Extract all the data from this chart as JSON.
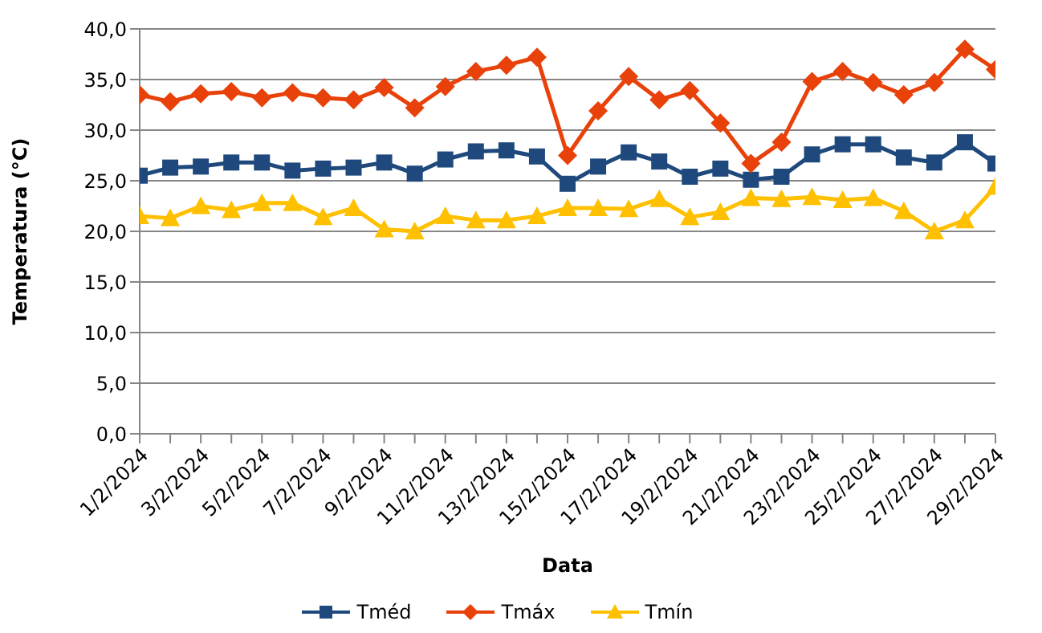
{
  "chart_data": {
    "type": "line",
    "xlabel": "Data",
    "ylabel": "Temperatura (°C)",
    "categories": [
      "1/2/2024",
      null,
      "3/2/2024",
      null,
      "5/2/2024",
      null,
      "7/2/2024",
      null,
      "9/2/2024",
      null,
      "11/2/2024",
      null,
      "13/2/2024",
      null,
      "15/2/2024",
      null,
      "17/2/2024",
      null,
      "19/2/2024",
      null,
      "21/2/2024",
      null,
      "23/2/2024",
      null,
      "25/2/2024",
      null,
      "27/2/2024",
      null,
      "29/2/2024"
    ],
    "series": [
      {
        "name": "Tméd",
        "color": "#1f497d",
        "marker": "square",
        "values": [
          25.5,
          26.3,
          26.4,
          26.8,
          26.8,
          26.0,
          26.2,
          26.3,
          26.8,
          25.7,
          27.1,
          27.9,
          28.0,
          27.4,
          24.7,
          26.4,
          27.8,
          26.9,
          25.4,
          26.2,
          25.1,
          25.4,
          27.6,
          28.6,
          28.6,
          27.3,
          26.8,
          28.8,
          26.7
        ]
      },
      {
        "name": "Tmáx",
        "color": "#e8410a",
        "marker": "diamond",
        "values": [
          33.5,
          32.8,
          33.6,
          33.8,
          33.2,
          33.7,
          33.2,
          33.0,
          34.2,
          32.2,
          34.3,
          35.8,
          36.4,
          37.2,
          27.5,
          31.9,
          35.3,
          33.0,
          33.9,
          30.7,
          26.7,
          28.8,
          34.8,
          35.8,
          34.7,
          33.5,
          34.7,
          38.0,
          36.0
        ]
      },
      {
        "name": "Tmín",
        "color": "#ffc000",
        "marker": "triangle",
        "values": [
          21.5,
          21.3,
          22.5,
          22.1,
          22.8,
          22.8,
          21.4,
          22.3,
          20.2,
          20.0,
          21.5,
          21.1,
          21.1,
          21.5,
          22.3,
          22.3,
          22.2,
          23.2,
          21.4,
          21.9,
          23.3,
          23.2,
          23.4,
          23.1,
          23.3,
          22.0,
          20.0,
          21.1,
          24.4
        ]
      }
    ],
    "ylim": [
      0,
      40
    ],
    "yticks": [
      {
        "value": 0,
        "label": "0,0"
      },
      {
        "value": 5,
        "label": "5,0"
      },
      {
        "value": 10,
        "label": "10,0"
      },
      {
        "value": 15,
        "label": "15,0"
      },
      {
        "value": 20,
        "label": "20,0"
      },
      {
        "value": 25,
        "label": "25,0"
      },
      {
        "value": 30,
        "label": "30,0"
      },
      {
        "value": 35,
        "label": "35,0"
      },
      {
        "value": 40,
        "label": "40,0"
      }
    ],
    "grid": "y",
    "legend": "bottom"
  }
}
